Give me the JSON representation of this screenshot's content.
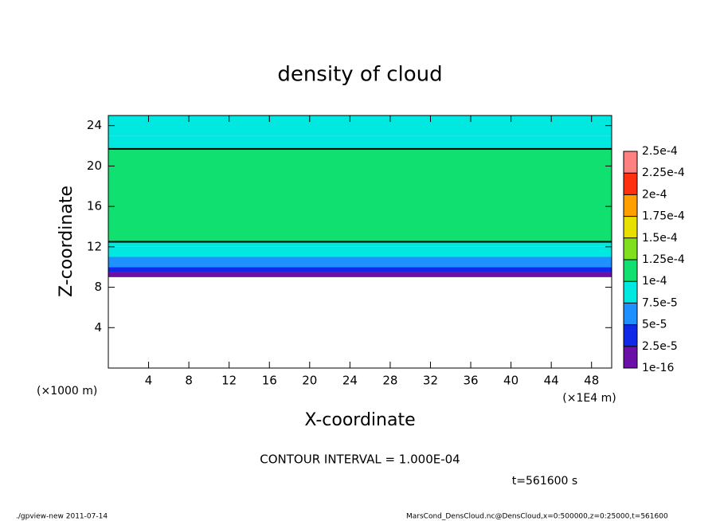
{
  "chart_data": {
    "type": "layered-contour",
    "title": "density of cloud",
    "x_label": "X-coordinate",
    "y_label": "Z-coordinate",
    "y_unit": "(×1000 m)",
    "x_unit": "(×1E4 m)",
    "xlim": [
      0,
      50
    ],
    "xticks": [
      4,
      8,
      12,
      16,
      20,
      24,
      28,
      32,
      36,
      40,
      44,
      48
    ],
    "ylim": [
      0,
      25
    ],
    "yticks": [
      4,
      8,
      12,
      16,
      20,
      24
    ],
    "z_edges": [
      9,
      9.5,
      10,
      11,
      12,
      12.5,
      21.7,
      23,
      25
    ],
    "values": [
      1e-05,
      3e-05,
      6e-05,
      8e-05,
      9e-05,
      0.00011,
      9e-05,
      8e-05
    ],
    "contour_color": "#000000",
    "colorbar": {
      "levels": [
        {
          "value": 1e-16,
          "label": "1e-16"
        },
        {
          "value": 2.5e-05,
          "label": "2.5e-5"
        },
        {
          "value": 5e-05,
          "label": "5e-5"
        },
        {
          "value": 7.5e-05,
          "label": "7.5e-5"
        },
        {
          "value": 0.0001,
          "label": "1e-4"
        },
        {
          "value": 0.000125,
          "label": "1.25e-4"
        },
        {
          "value": 0.00015,
          "label": "1.5e-4"
        },
        {
          "value": 0.000175,
          "label": "1.75e-4"
        },
        {
          "value": 0.0002,
          "label": "2e-4"
        },
        {
          "value": 0.000225,
          "label": "2.25e-4"
        },
        {
          "value": 0.00025,
          "label": "2.5e-4"
        }
      ],
      "colors": [
        "#6a10a8",
        "#1028e8",
        "#1e90ff",
        "#00e8e0",
        "#10e070",
        "#80e020",
        "#e8e000",
        "#ffa000",
        "#ff3010",
        "#ff8080"
      ]
    },
    "contour_interval": {
      "value": 0.0001,
      "label": "CONTOUR INTERVAL = 1.000E-04"
    },
    "time_label": "t=561600 s",
    "footer_left": "./gpview-new  2011-07-14",
    "footer_right": "MarsCond_DensCloud.nc@DensCloud,x=0:500000,z=0:25000,t=561600"
  }
}
